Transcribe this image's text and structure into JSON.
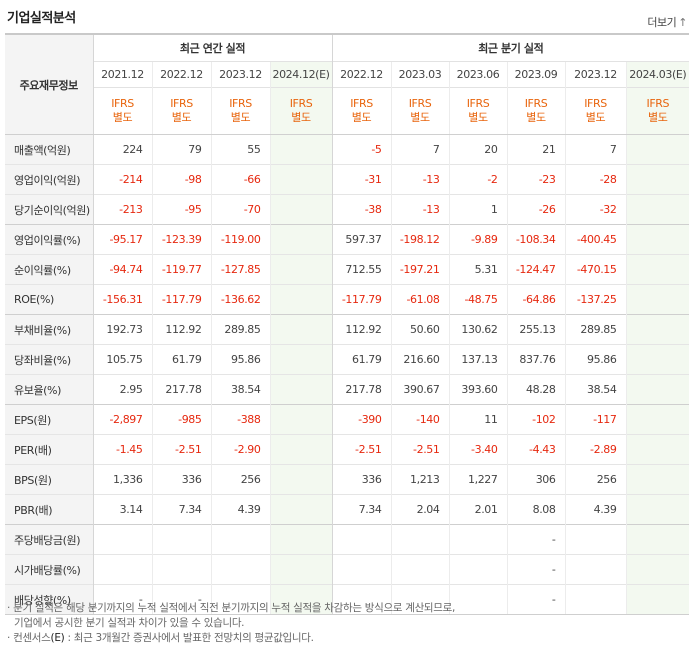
{
  "title": "기업실적분석",
  "more_label": "더보기",
  "more_arrow": "↑",
  "header": {
    "row_label": "주요재무정보",
    "annual_label": "최근 연간 실적",
    "quarter_label": "최근 분기 실적",
    "annual_periods": [
      "2021.12",
      "2022.12",
      "2023.12",
      "2024.12(E)"
    ],
    "quarter_periods": [
      "2022.12",
      "2023.03",
      "2023.06",
      "2023.09",
      "2023.12",
      "2024.03(E)"
    ],
    "ifrs_line1": "IFRS",
    "ifrs_line2": "별도"
  },
  "rows": [
    {
      "label": "매출액(억원)",
      "annual": [
        "224",
        "79",
        "55",
        ""
      ],
      "quarter": [
        "-5",
        "7",
        "20",
        "21",
        "7",
        ""
      ],
      "group_start": true
    },
    {
      "label": "영업이익(억원)",
      "annual": [
        "-214",
        "-98",
        "-66",
        ""
      ],
      "quarter": [
        "-31",
        "-13",
        "-2",
        "-23",
        "-28",
        ""
      ]
    },
    {
      "label": "당기순이익(억원)",
      "annual": [
        "-213",
        "-95",
        "-70",
        ""
      ],
      "quarter": [
        "-38",
        "-13",
        "1",
        "-26",
        "-32",
        ""
      ]
    },
    {
      "label": "영업이익률(%)",
      "annual": [
        "-95.17",
        "-123.39",
        "-119.00",
        ""
      ],
      "quarter": [
        "597.37",
        "-198.12",
        "-9.89",
        "-108.34",
        "-400.45",
        ""
      ],
      "group_start": true
    },
    {
      "label": "순이익률(%)",
      "annual": [
        "-94.74",
        "-119.77",
        "-127.85",
        ""
      ],
      "quarter": [
        "712.55",
        "-197.21",
        "5.31",
        "-124.47",
        "-470.15",
        ""
      ]
    },
    {
      "label": "ROE(%)",
      "annual": [
        "-156.31",
        "-117.79",
        "-136.62",
        ""
      ],
      "quarter": [
        "-117.79",
        "-61.08",
        "-48.75",
        "-64.86",
        "-137.25",
        ""
      ]
    },
    {
      "label": "부채비율(%)",
      "annual": [
        "192.73",
        "112.92",
        "289.85",
        ""
      ],
      "quarter": [
        "112.92",
        "50.60",
        "130.62",
        "255.13",
        "289.85",
        ""
      ],
      "group_start": true
    },
    {
      "label": "당좌비율(%)",
      "annual": [
        "105.75",
        "61.79",
        "95.86",
        ""
      ],
      "quarter": [
        "61.79",
        "216.60",
        "137.13",
        "837.76",
        "95.86",
        ""
      ]
    },
    {
      "label": "유보율(%)",
      "annual": [
        "2.95",
        "217.78",
        "38.54",
        ""
      ],
      "quarter": [
        "217.78",
        "390.67",
        "393.60",
        "48.28",
        "38.54",
        ""
      ]
    },
    {
      "label": "EPS(원)",
      "annual": [
        "-2,897",
        "-985",
        "-388",
        ""
      ],
      "quarter": [
        "-390",
        "-140",
        "11",
        "-102",
        "-117",
        ""
      ],
      "group_start": true
    },
    {
      "label": "PER(배)",
      "annual": [
        "-1.45",
        "-2.51",
        "-2.90",
        ""
      ],
      "quarter": [
        "-2.51",
        "-2.51",
        "-3.40",
        "-4.43",
        "-2.89",
        ""
      ]
    },
    {
      "label": "BPS(원)",
      "annual": [
        "1,336",
        "336",
        "256",
        ""
      ],
      "quarter": [
        "336",
        "1,213",
        "1,227",
        "306",
        "256",
        ""
      ]
    },
    {
      "label": "PBR(배)",
      "annual": [
        "3.14",
        "7.34",
        "4.39",
        ""
      ],
      "quarter": [
        "7.34",
        "2.04",
        "2.01",
        "8.08",
        "4.39",
        ""
      ]
    },
    {
      "label": "주당배당금(원)",
      "annual": [
        "",
        "",
        "",
        ""
      ],
      "quarter": [
        "",
        "",
        "",
        "-",
        "",
        ""
      ],
      "group_start": true
    },
    {
      "label": "시가배당률(%)",
      "annual": [
        "",
        "",
        "",
        ""
      ],
      "quarter": [
        "",
        "",
        "",
        "-",
        "",
        ""
      ]
    },
    {
      "label": "배당성향(%)",
      "annual": [
        "-",
        "-",
        "",
        ""
      ],
      "quarter": [
        "",
        "",
        "",
        "-",
        "",
        ""
      ]
    }
  ],
  "notes": [
    "분기 실적은 해당 분기까지의 누적 실적에서 직전 분기까지의 누적 실적을 차감하는 방식으로 계산되므로,",
    "기업에서 공시한 분기 실적과 차이가 있을 수 있습니다.",
    "컨센서스",
    "(E)",
    ": 최근 3개월간 증권사에서 발표한 전망치의 평균값입니다."
  ],
  "colors": {
    "negative": "#e6280f",
    "ifrs": "#e8640c",
    "estimate_bg": "#f3f9f0"
  }
}
